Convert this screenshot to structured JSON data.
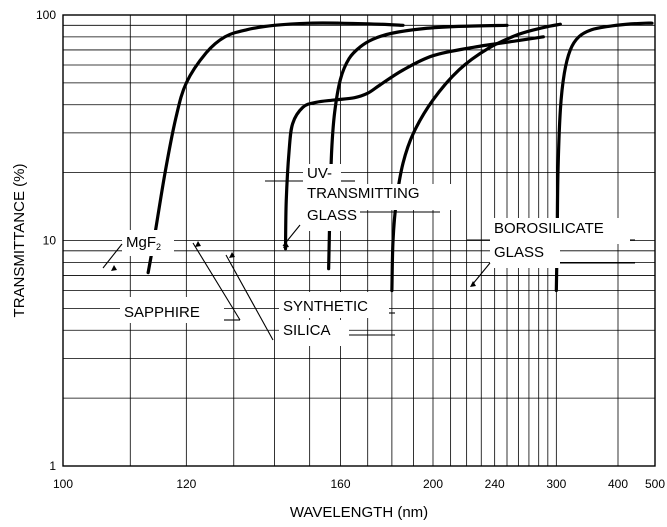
{
  "chart_data": {
    "type": "line",
    "xlabel": "WAVELENGTH (nm)",
    "ylabel": "TRANSMITTANCE (%)",
    "xscale": "reciprocal",
    "yscale": "log",
    "xlim": [
      100,
      500
    ],
    "ylim": [
      1,
      100
    ],
    "grid": true,
    "x_major_ticks": [
      100,
      120,
      160,
      200,
      240,
      300,
      400,
      500
    ],
    "x_tick_labels": [
      "100",
      "120",
      "160",
      "200",
      "240",
      "300",
      "400",
      "500"
    ],
    "x_minor_ticks": [
      110,
      130,
      140,
      150,
      170,
      180,
      190,
      210,
      220,
      230,
      250,
      260,
      270,
      280,
      290
    ],
    "y_tick_values": [
      1,
      10,
      100
    ],
    "y_tick_labels": [
      "1",
      "10",
      "100"
    ],
    "y_minor_ticks": [
      2,
      3,
      4,
      5,
      6,
      7,
      8,
      9,
      20,
      30,
      40,
      50,
      60,
      70,
      80,
      90
    ],
    "series": [
      {
        "name": "MgF2",
        "x": [
          113,
          114,
          116,
          118,
          120,
          124,
          128,
          133,
          140,
          150,
          160,
          175,
          185
        ],
        "y": [
          7.2,
          10,
          20,
          35,
          50,
          68,
          80,
          86,
          90,
          92,
          92,
          91,
          90
        ]
      },
      {
        "name": "SAPPHIRE",
        "x": [
          143,
          143.2,
          144,
          145,
          148,
          152,
          158,
          165,
          170,
          175,
          185,
          200,
          225,
          260,
          285
        ],
        "y": [
          9.2,
          15,
          25,
          33,
          39,
          41,
          42,
          43,
          45,
          49,
          57,
          66,
          72,
          77,
          80
        ]
      },
      {
        "name": "SYNTHETIC SILICA",
        "x": [
          156,
          156.5,
          157,
          158,
          160,
          163,
          167,
          172,
          180,
          195,
          215,
          250
        ],
        "y": [
          7.5,
          15,
          25,
          37,
          52,
          64,
          72,
          78,
          83,
          87,
          89,
          90
        ]
      },
      {
        "name": "UV-TRANSMITTING GLASS",
        "x": [
          180,
          180.5,
          182,
          185,
          190,
          200,
          215,
          235,
          260,
          285,
          305
        ],
        "y": [
          6,
          10,
          15,
          22,
          30,
          42,
          57,
          71,
          82,
          88,
          91
        ]
      },
      {
        "name": "BOROSILICATE GLASS",
        "x": [
          300,
          301,
          302,
          305,
          310,
          318,
          330,
          350,
          380,
          420,
          470,
          490
        ],
        "y": [
          6,
          10,
          20,
          38,
          55,
          70,
          80,
          86,
          89,
          91,
          92,
          92
        ]
      }
    ],
    "annotations": [
      {
        "text": "MgF",
        "subscript": "2",
        "series": "MgF2",
        "x": 113,
        "y": 7.2
      },
      {
        "text": "SAPPHIRE",
        "series": "SAPPHIRE",
        "x": 143,
        "y": 9.2
      },
      {
        "text": "SYNTHETIC",
        "series": "SYNTHETIC SILICA",
        "x": 156,
        "y": 9
      },
      {
        "text": "SILICA",
        "series": "SYNTHETIC SILICA",
        "x": 156,
        "y": 9
      },
      {
        "text": "UV-",
        "series": "UV-TRANSMITTING GLASS",
        "x": 181,
        "y": 8.5
      },
      {
        "text": "TRANSMITTING",
        "series": "UV-TRANSMITTING GLASS",
        "x": 181,
        "y": 8.5
      },
      {
        "text": "GLASS",
        "series": "UV-TRANSMITTING GLASS",
        "x": 181,
        "y": 8.5
      },
      {
        "text": "BOROSILICATE",
        "series": "BOROSILICATE GLASS",
        "x": 300.5,
        "y": 6
      },
      {
        "text": "GLASS",
        "series": "BOROSILICATE GLASS",
        "x": 300.5,
        "y": 6
      }
    ]
  }
}
